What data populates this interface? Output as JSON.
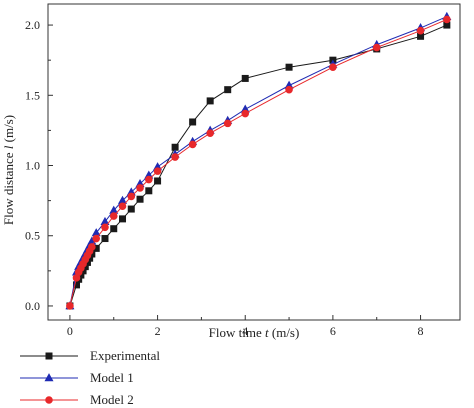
{
  "chart_data": {
    "type": "line",
    "xlabel_parts": [
      "Flow time ",
      "t",
      " (m/s)"
    ],
    "ylabel_parts": [
      "Flow distance ",
      "l",
      " (m/s)"
    ],
    "xlim": [
      -0.5,
      8.9
    ],
    "ylim": [
      -0.1,
      2.15
    ],
    "xticks": [
      0,
      2,
      4,
      6,
      8
    ],
    "yticks": [
      0.0,
      0.5,
      1.0,
      1.5,
      2.0
    ],
    "xtick_labels": [
      "0",
      "2",
      "4",
      "6",
      "8"
    ],
    "ytick_labels": [
      "0.0",
      "0.5",
      "1.0",
      "1.5",
      "2.0"
    ],
    "legend_position": "bottom-left, below plot",
    "series": [
      {
        "name": "Experimental",
        "color": "#1a1a1a",
        "marker": "square",
        "x": [
          0,
          0.15,
          0.2,
          0.25,
          0.3,
          0.35,
          0.4,
          0.45,
          0.5,
          0.6,
          0.8,
          1.0,
          1.2,
          1.4,
          1.6,
          1.8,
          2.0,
          2.4,
          2.8,
          3.2,
          3.6,
          4.0,
          5.0,
          6.0,
          7.0,
          8.0,
          8.6
        ],
        "y": [
          0.0,
          0.15,
          0.19,
          0.22,
          0.25,
          0.28,
          0.31,
          0.34,
          0.37,
          0.41,
          0.48,
          0.55,
          0.62,
          0.69,
          0.76,
          0.82,
          0.89,
          1.13,
          1.31,
          1.46,
          1.54,
          1.62,
          1.7,
          1.75,
          1.83,
          1.92,
          2.0
        ]
      },
      {
        "name": "Model 1",
        "color": "#1f2bb3",
        "marker": "triangle",
        "x": [
          0,
          0.15,
          0.2,
          0.25,
          0.3,
          0.35,
          0.4,
          0.45,
          0.5,
          0.6,
          0.8,
          1.0,
          1.2,
          1.4,
          1.6,
          1.8,
          2.0,
          2.4,
          2.8,
          3.2,
          3.6,
          4.0,
          5.0,
          6.0,
          7.0,
          8.0,
          8.6
        ],
        "y": [
          0.0,
          0.24,
          0.28,
          0.31,
          0.34,
          0.37,
          0.4,
          0.43,
          0.46,
          0.52,
          0.6,
          0.68,
          0.75,
          0.81,
          0.87,
          0.93,
          0.99,
          1.08,
          1.17,
          1.25,
          1.32,
          1.4,
          1.57,
          1.72,
          1.86,
          1.98,
          2.06
        ]
      },
      {
        "name": "Model 2",
        "color": "#e8282b",
        "marker": "circle",
        "x": [
          0,
          0.15,
          0.2,
          0.25,
          0.3,
          0.35,
          0.4,
          0.45,
          0.5,
          0.6,
          0.8,
          1.0,
          1.2,
          1.4,
          1.6,
          1.8,
          2.0,
          2.4,
          2.8,
          3.2,
          3.6,
          4.0,
          5.0,
          6.0,
          7.0,
          8.0,
          8.6
        ],
        "y": [
          0.0,
          0.2,
          0.24,
          0.27,
          0.3,
          0.33,
          0.36,
          0.39,
          0.42,
          0.48,
          0.56,
          0.64,
          0.71,
          0.78,
          0.84,
          0.9,
          0.96,
          1.06,
          1.15,
          1.23,
          1.3,
          1.37,
          1.54,
          1.7,
          1.84,
          1.96,
          2.04
        ]
      }
    ]
  }
}
